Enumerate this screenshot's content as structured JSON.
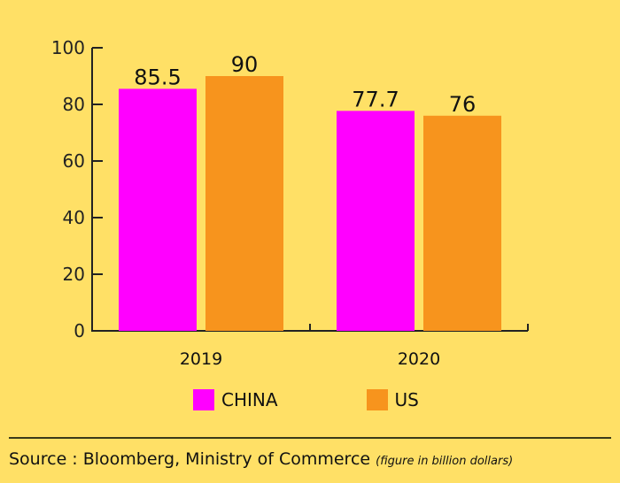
{
  "chart_data": {
    "type": "bar",
    "title": "",
    "xlabel": "",
    "ylabel": "",
    "categories": [
      "2019",
      "2020"
    ],
    "series": [
      {
        "name": "CHINA",
        "color": "#FF00FF",
        "values": [
          85.5,
          77.7
        ],
        "labels": [
          "85.5",
          "77.7"
        ]
      },
      {
        "name": "US",
        "color": "#F7941D",
        "values": [
          90,
          76
        ],
        "labels": [
          "90",
          "76"
        ]
      }
    ],
    "ylim": [
      0,
      100
    ],
    "yticks": [
      0,
      20,
      40,
      60,
      80,
      100
    ],
    "ytick_labels": [
      "0",
      "20",
      "40",
      "60",
      "80",
      "100"
    ],
    "grid": false,
    "legend_position": "bottom"
  },
  "legend": [
    {
      "label": "CHINA",
      "color": "#FF00FF"
    },
    {
      "label": "US",
      "color": "#F7941D"
    }
  ],
  "footer": {
    "source": "Source : Bloomberg, Ministry of Commerce",
    "note": "(figure in billion dollars)"
  },
  "colors": {
    "background": "#FFE066",
    "axis": "#222222"
  }
}
